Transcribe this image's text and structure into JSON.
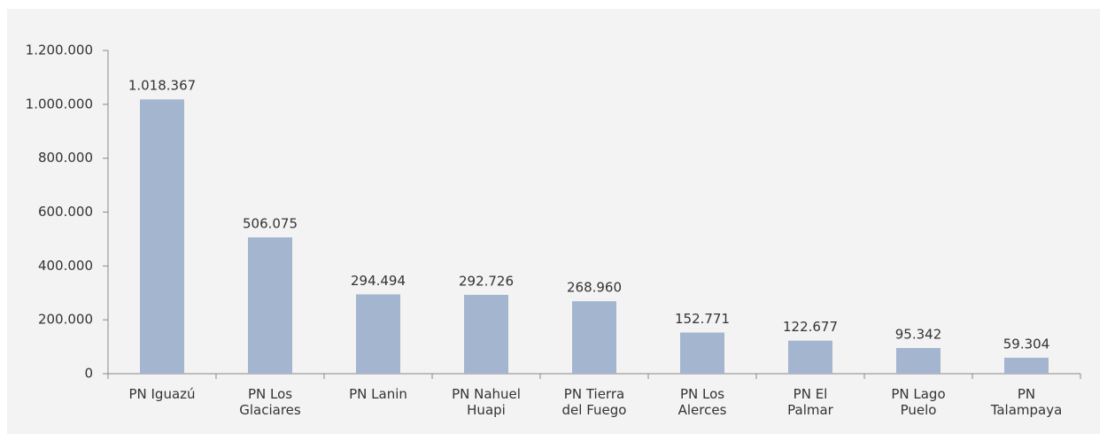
{
  "chart_data": {
    "type": "bar",
    "categories": [
      "PN Iguazú",
      "PN Los\nGlaciares",
      "PN Lanin",
      "PN Nahuel\nHuapi",
      "PN Tierra\ndel Fuego",
      "PN Los\nAlerces",
      "PN El\nPalmar",
      "PN Lago\nPuelo",
      "PN\nTalampaya"
    ],
    "values": [
      1018367,
      506075,
      294494,
      292726,
      268960,
      152771,
      122677,
      95342,
      59304
    ],
    "value_labels": [
      "1.018.367",
      "506.075",
      "294.494",
      "292.726",
      "268.960",
      "152.771",
      "122.677",
      "95.342",
      "59.304"
    ],
    "color": "#a3b5cf",
    "ylim": [
      0,
      1200000
    ],
    "yticks": [
      0,
      {
        "value": 200000,
        "label": "200.000"
      },
      {
        "value": 400000,
        "label": "400.000"
      },
      {
        "value": 600000,
        "label": "600.000"
      },
      {
        "value": 800000,
        "label": "800.000"
      },
      {
        "value": 1000000,
        "label": "1.000.000"
      },
      {
        "value": 1200000,
        "label": "1.200.000"
      }
    ],
    "grid": false
  }
}
